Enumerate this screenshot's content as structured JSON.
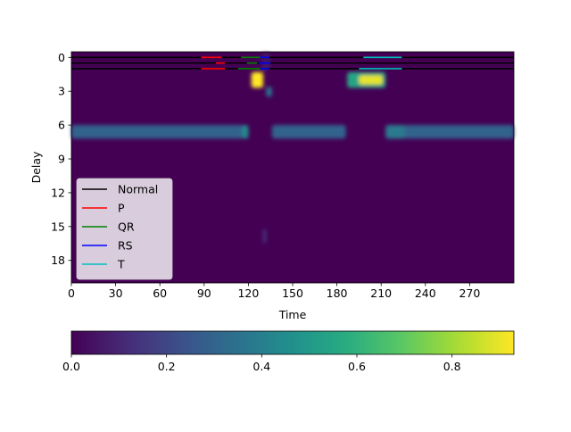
{
  "chart_data": [
    {
      "type": "heatmap",
      "title": "",
      "xlabel": "Time",
      "ylabel": "Delay",
      "xlim": [
        0,
        300
      ],
      "ylim": [
        20,
        -0.5
      ],
      "xticks": [
        0,
        30,
        60,
        90,
        120,
        150,
        180,
        210,
        240,
        270
      ],
      "yticks": [
        0,
        3,
        6,
        9,
        12,
        15,
        18
      ],
      "colormap": "viridis",
      "background_value": 0.0,
      "grid": false,
      "legend_position": "lower-left",
      "legend": [
        {
          "label": "Normal",
          "color": "#000000"
        },
        {
          "label": "P",
          "color": "#ff0000"
        },
        {
          "label": "QR",
          "color": "#008000"
        },
        {
          "label": "RS",
          "color": "#0000ff"
        },
        {
          "label": "T",
          "color": "#00bfbf"
        }
      ],
      "segment_lines": [
        {
          "label": "Normal",
          "color": "#000000",
          "delay": 0,
          "x": [
            0,
            300
          ]
        },
        {
          "label": "Normal",
          "color": "#000000",
          "delay": 0.5,
          "x": [
            0,
            300
          ]
        },
        {
          "label": "Normal",
          "color": "#000000",
          "delay": 1,
          "x": [
            0,
            300
          ]
        },
        {
          "label": "P",
          "color": "#ff0000",
          "delay": 0,
          "x": [
            88,
            102
          ]
        },
        {
          "label": "P",
          "color": "#ff0000",
          "delay": 0.5,
          "x": [
            98,
            104
          ]
        },
        {
          "label": "P",
          "color": "#ff0000",
          "delay": 1,
          "x": [
            88,
            104
          ]
        },
        {
          "label": "QR",
          "color": "#008000",
          "delay": 0,
          "x": [
            115,
            128
          ]
        },
        {
          "label": "QR",
          "color": "#008000",
          "delay": 0.5,
          "x": [
            119,
            126
          ]
        },
        {
          "label": "QR",
          "color": "#008000",
          "delay": 1,
          "x": [
            113,
            128
          ]
        },
        {
          "label": "RS",
          "color": "#0000ff",
          "delay": 0,
          "x": [
            128,
            134
          ]
        },
        {
          "label": "RS",
          "color": "#0000ff",
          "delay": 0.5,
          "x": [
            127,
            135
          ]
        },
        {
          "label": "RS",
          "color": "#0000ff",
          "delay": 1,
          "x": [
            128,
            134
          ]
        },
        {
          "label": "T",
          "color": "#00bfbf",
          "delay": 0,
          "x": [
            198,
            224
          ]
        },
        {
          "label": "T",
          "color": "#00bfbf",
          "delay": 1,
          "x": [
            195,
            224
          ]
        }
      ],
      "heat_regions": [
        {
          "x": [
            0,
            120
          ],
          "delay": [
            6,
            7.2
          ],
          "value": 0.3
        },
        {
          "x": [
            116,
            120
          ],
          "delay": [
            6,
            7.2
          ],
          "value": 0.45
        },
        {
          "x": [
            136,
            186
          ],
          "delay": [
            6,
            7.2
          ],
          "value": 0.3
        },
        {
          "x": [
            213,
            300
          ],
          "delay": [
            6,
            7.2
          ],
          "value": 0.3
        },
        {
          "x": [
            213,
            226
          ],
          "delay": [
            6,
            7.2
          ],
          "value": 0.38
        },
        {
          "x": [
            122,
            130
          ],
          "delay": [
            1.3,
            2.7
          ],
          "value": 0.93
        },
        {
          "x": [
            132,
            136
          ],
          "delay": [
            2.6,
            3.5
          ],
          "value": 0.35
        },
        {
          "x": [
            187,
            213
          ],
          "delay": [
            1.3,
            2.7
          ],
          "value": 0.55
        },
        {
          "x": [
            195,
            211
          ],
          "delay": [
            1.6,
            2.4
          ],
          "value": 0.9
        },
        {
          "x": [
            129,
            135
          ],
          "delay": [
            -0.4,
            1.1
          ],
          "value": 0.05
        },
        {
          "x": [
            130,
            132
          ],
          "delay": [
            15.2,
            16.5
          ],
          "value": 0.15
        }
      ],
      "colorbar": {
        "orientation": "horizontal",
        "range": [
          0,
          0.93
        ],
        "ticks": [
          0.0,
          0.2,
          0.4,
          0.6,
          0.8
        ],
        "tick_labels": [
          "0.0",
          "0.2",
          "0.4",
          "0.6",
          "0.8"
        ]
      }
    }
  ]
}
